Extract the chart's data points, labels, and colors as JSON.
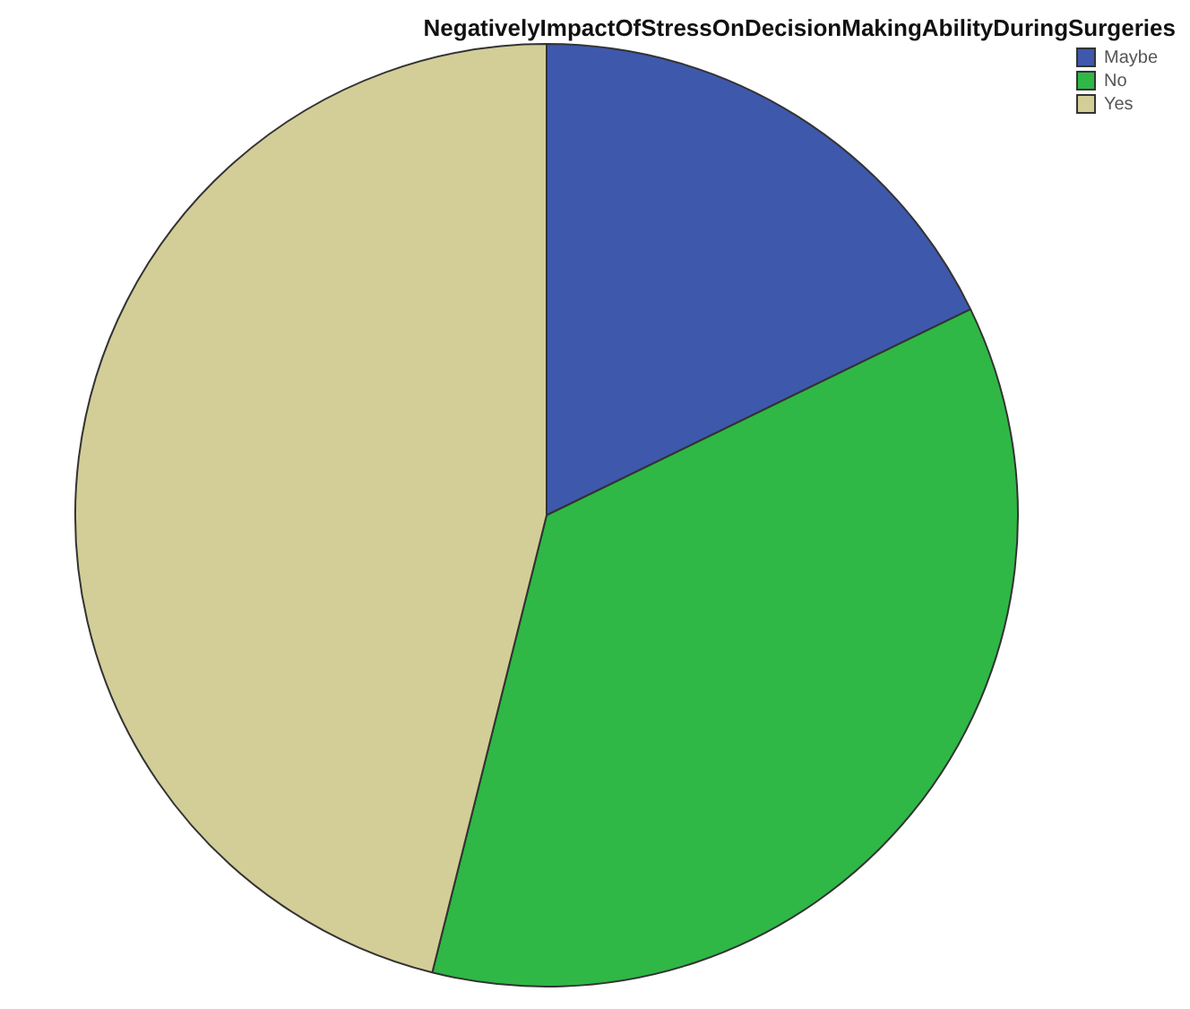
{
  "chart_data": {
    "type": "pie",
    "title": "NegativelyImpactOfStressOnDecisionMakingAbilityDuringSurgeries",
    "categories": [
      "Maybe",
      "No",
      "Yes"
    ],
    "values": [
      17.8,
      36.1,
      46.1
    ],
    "colors": [
      "#3e58ac",
      "#2fb846",
      "#d3ce98"
    ],
    "legend": "top right"
  }
}
